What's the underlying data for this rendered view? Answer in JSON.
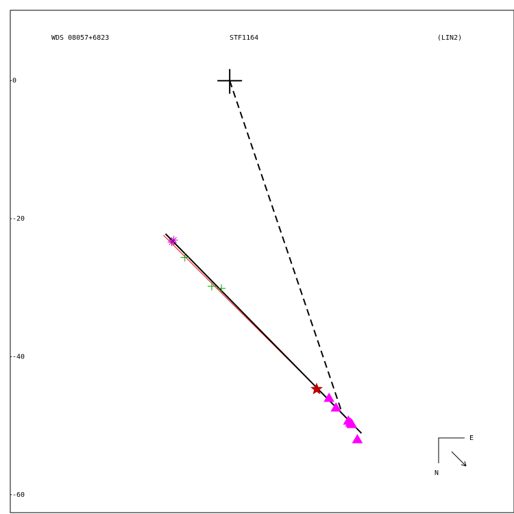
{
  "chart_data": {
    "type": "scatter",
    "annotations": [
      "WDS 08057+6823",
      "STF1164",
      "(LIN2)"
    ],
    "compass": [
      "E",
      "N"
    ],
    "xlim": [
      -31.8,
      41.2
    ],
    "ylim": [
      -62.6,
      10.2
    ],
    "yticks": [
      0,
      -20,
      -40,
      -60
    ],
    "series": [
      {
        "marker": "bigplus",
        "color": "#000000",
        "x": [
          0
        ],
        "y": [
          0
        ]
      },
      {
        "marker": "asterisk",
        "color": "#c000c0",
        "x": [
          -8.4,
          -8.1
        ],
        "y": [
          -23.4,
          -23.1
        ]
      },
      {
        "marker": "plus",
        "color": "#00a000",
        "x": [
          -6.5,
          -2.6,
          -1.2
        ],
        "y": [
          -25.6,
          -29.8,
          -30.1
        ]
      },
      {
        "marker": "star",
        "color": "#c00000",
        "x": [
          12.6
        ],
        "y": [
          -44.7
        ]
      },
      {
        "marker": "triangle",
        "color": "#ff00ff",
        "x": [
          14.4,
          15.4,
          17.2,
          17.5,
          17.7,
          18.5
        ],
        "y": [
          -46.0,
          -47.4,
          -49.3,
          -49.6,
          -49.8,
          -52.0
        ]
      }
    ],
    "lines": [
      {
        "color": "#ff0000",
        "dash": false,
        "width": 1,
        "x": [
          -9.6,
          13.4
        ],
        "y": [
          -22.4,
          -45.3
        ]
      },
      {
        "color": "#000000",
        "dash": false,
        "width": 2,
        "x": [
          -9.3,
          19.1
        ],
        "y": [
          -22.2,
          -51.1
        ]
      },
      {
        "color": "#000000",
        "dash": true,
        "width": 2,
        "x": [
          0,
          16.1
        ],
        "y": [
          0,
          -47.6
        ]
      }
    ]
  }
}
